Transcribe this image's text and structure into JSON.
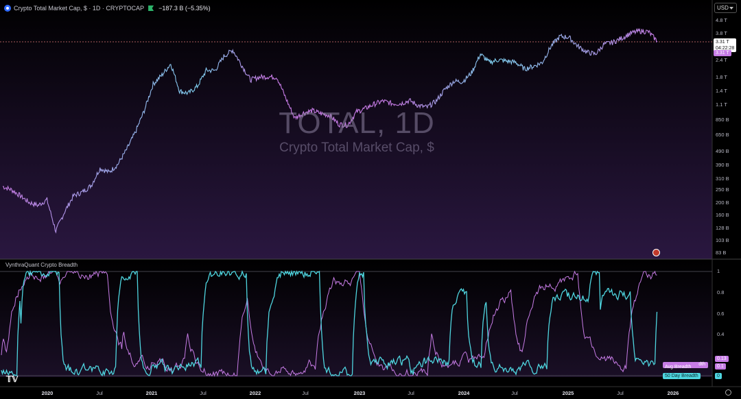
{
  "header": {
    "title": "Crypto Total Market Cap, $ · 1D · CRYPTOCAP",
    "change": "−187.3 B (−5.35%)",
    "currency": "USD"
  },
  "watermark": {
    "symbol": "TOTAL, 1D",
    "name": "Crypto Total Market Cap, $"
  },
  "price_axis": {
    "labels": [
      "4.8 T",
      "3.8 T",
      "2.4 T",
      "1.8 T",
      "1.4 T",
      "1.1 T",
      "850 B",
      "650 B",
      "490 B",
      "390 B",
      "310 B",
      "250 B",
      "200 B",
      "160 B",
      "128 B",
      "103 B",
      "83 B"
    ],
    "last_value": "3.31 T",
    "countdown": "04:22:28",
    "tag_value": "3.31 T"
  },
  "indicator_axis": {
    "labels": [
      "1",
      "0.8",
      "0.6",
      "0.4",
      "0.2",
      "0.1",
      "0"
    ],
    "avg_value": "0.13",
    "avg_value_2": "0.1",
    "fifty_value": "0",
    "avg_label": "Avg Breadth",
    "avg_suffix": "dth",
    "fifty_label": "50 Day Breadth"
  },
  "time_axis": {
    "labels": [
      "2020",
      "Jul",
      "2021",
      "Jul",
      "2022",
      "Jul",
      "2023",
      "Jul",
      "2024",
      "Jul",
      "2025",
      "Jul",
      "2026"
    ]
  },
  "indicator": {
    "title": "VynthraQuant Crypto Breadth"
  },
  "colors": {
    "background": "#000000",
    "purple_top": "#2a1740",
    "cyan": "#4fd6e0",
    "violet": "#c77ce6",
    "line_price_hi": "#7fd0f0"
  },
  "chart_data": [
    {
      "type": "line",
      "title": "Crypto Total Market Cap, $",
      "ylabel": "",
      "xlabel": "",
      "yscale": "log",
      "ylim": [
        78,
        5200
      ],
      "x": [
        "2019-09",
        "2019-10",
        "2019-11",
        "2019-12",
        "2020-01",
        "2020-02",
        "2020-03",
        "2020-04",
        "2020-05",
        "2020-06",
        "2020-07",
        "2020-08",
        "2020-09",
        "2020-10",
        "2020-11",
        "2020-12",
        "2021-01",
        "2021-02",
        "2021-03",
        "2021-04",
        "2021-05",
        "2021-06",
        "2021-07",
        "2021-08",
        "2021-09",
        "2021-10",
        "2021-11",
        "2021-12",
        "2022-01",
        "2022-02",
        "2022-03",
        "2022-04",
        "2022-05",
        "2022-06",
        "2022-07",
        "2022-08",
        "2022-09",
        "2022-10",
        "2022-11",
        "2022-12",
        "2023-01",
        "2023-02",
        "2023-03",
        "2023-04",
        "2023-05",
        "2023-06",
        "2023-07",
        "2023-08",
        "2023-09",
        "2023-10",
        "2023-11",
        "2023-12",
        "2024-01",
        "2024-02",
        "2024-03",
        "2024-04",
        "2024-05",
        "2024-06",
        "2024-07",
        "2024-08",
        "2024-09",
        "2024-10",
        "2024-11",
        "2024-12",
        "2025-01",
        "2025-02",
        "2025-03",
        "2025-04",
        "2025-05",
        "2025-06",
        "2025-07",
        "2025-08",
        "2025-09",
        "2025-10",
        "2025-11"
      ],
      "series": [
        {
          "name": "TOTAL",
          "values": [
            270,
            255,
            230,
            205,
            195,
            215,
            125,
            175,
            230,
            245,
            275,
            370,
            345,
            395,
            510,
            690,
            1000,
            1580,
            1850,
            2250,
            1400,
            1350,
            1520,
            2000,
            2000,
            2550,
            2850,
            2200,
            1700,
            1780,
            1800,
            1780,
            1240,
            880,
            960,
            1000,
            950,
            920,
            790,
            780,
            980,
            1040,
            1120,
            1180,
            1130,
            1130,
            1190,
            1090,
            1060,
            1180,
            1450,
            1660,
            1650,
            1920,
            2650,
            2300,
            2400,
            2350,
            2300,
            2050,
            2150,
            2300,
            3050,
            3600,
            3550,
            3050,
            2750,
            2650,
            3150,
            3250,
            3500,
            3800,
            3950,
            3900,
            3310
          ]
        }
      ]
    },
    {
      "type": "line",
      "title": "VynthraQuant Crypto Breadth",
      "ylim": [
        0,
        1
      ],
      "series": [
        {
          "name": "50 Day Breadth",
          "values": []
        },
        {
          "name": "Avg Breadth",
          "values": []
        }
      ],
      "last_values": {
        "Avg Breadth": 0.13,
        "50 Day Breadth": 0
      }
    }
  ]
}
